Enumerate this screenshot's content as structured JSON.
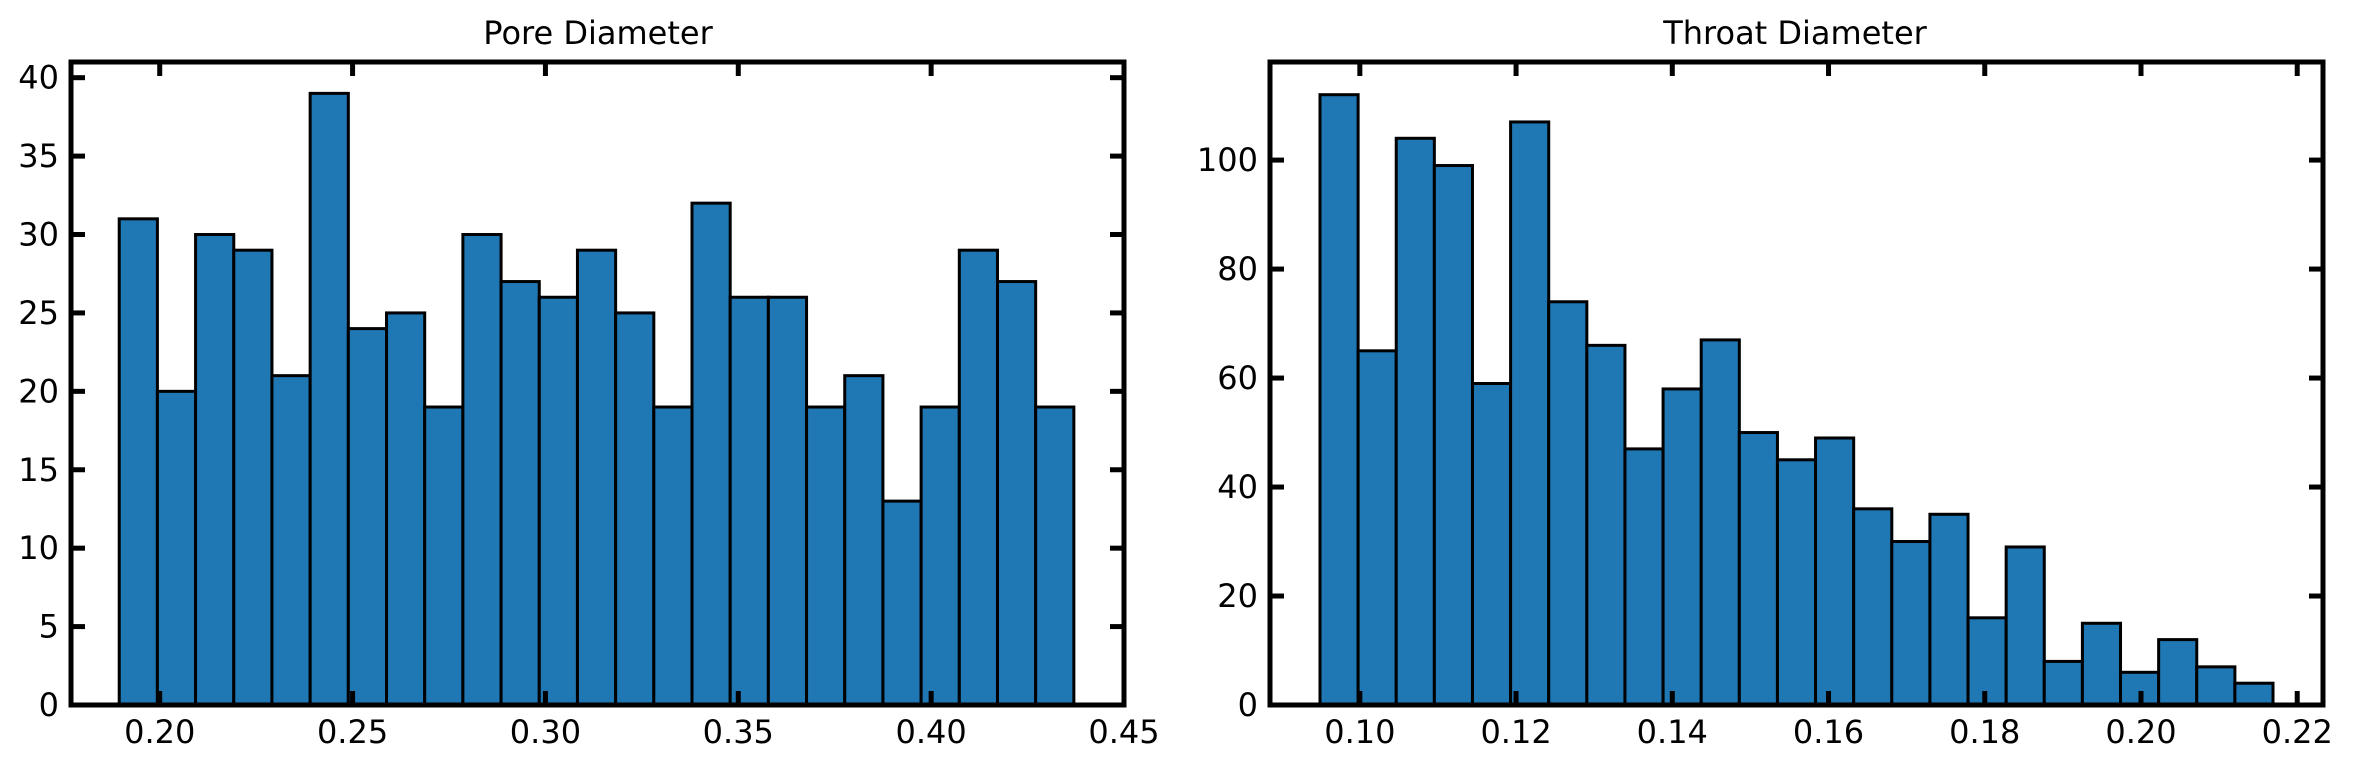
{
  "chart_data": [
    {
      "type": "bar",
      "title": "Pore Diameter",
      "xlabel": "",
      "ylabel": "",
      "bar_color": "#1f77b4",
      "edge_color": "#000000",
      "xlim": [
        0.177,
        0.45
      ],
      "ylim": [
        0,
        41
      ],
      "x_ticks": [
        0.2,
        0.25,
        0.3,
        0.35,
        0.4,
        0.45
      ],
      "x_tick_labels": [
        "0.20",
        "0.25",
        "0.30",
        "0.35",
        "0.40",
        "0.45"
      ],
      "y_ticks": [
        0,
        5,
        10,
        15,
        20,
        25,
        30,
        35,
        40
      ],
      "y_tick_labels": [
        "0",
        "5",
        "10",
        "15",
        "20",
        "25",
        "30",
        "35",
        "40"
      ],
      "bin_edges": [
        0.1895,
        0.1994,
        0.2093,
        0.2192,
        0.2291,
        0.239,
        0.2489,
        0.2588,
        0.2687,
        0.2786,
        0.2885,
        0.2984,
        0.3083,
        0.3182,
        0.3281,
        0.338,
        0.3479,
        0.3578,
        0.3677,
        0.3776,
        0.3875,
        0.3974,
        0.4073,
        0.4172,
        0.4271,
        0.437
      ],
      "values": [
        31,
        20,
        30,
        29,
        21,
        39,
        24,
        25,
        19,
        30,
        27,
        26,
        29,
        25,
        19,
        32,
        26,
        26,
        19,
        21,
        13,
        19,
        29,
        27,
        19
      ]
    },
    {
      "type": "bar",
      "title": "Throat Diameter",
      "xlabel": "",
      "ylabel": "",
      "bar_color": "#1f77b4",
      "edge_color": "#000000",
      "xlim": [
        0.0885,
        0.2233
      ],
      "ylim": [
        0,
        118
      ],
      "x_ticks": [
        0.1,
        0.12,
        0.14,
        0.16,
        0.18,
        0.2,
        0.22
      ],
      "x_tick_labels": [
        "0.10",
        "0.12",
        "0.14",
        "0.16",
        "0.18",
        "0.20",
        "0.22"
      ],
      "y_ticks": [
        0,
        20,
        40,
        60,
        80,
        100
      ],
      "y_tick_labels": [
        "0",
        "20",
        "40",
        "60",
        "80",
        "100"
      ],
      "bin_edges": [
        0.0949,
        0.09978,
        0.10466,
        0.10954,
        0.11442,
        0.1193,
        0.12418,
        0.12906,
        0.13394,
        0.13882,
        0.1437,
        0.14858,
        0.15346,
        0.15834,
        0.16322,
        0.1681,
        0.17298,
        0.17786,
        0.18274,
        0.18762,
        0.1925,
        0.19738,
        0.20226,
        0.20714,
        0.21202,
        0.2169
      ],
      "values": [
        112,
        65,
        104,
        99,
        59,
        107,
        74,
        66,
        47,
        58,
        67,
        50,
        45,
        49,
        36,
        30,
        35,
        16,
        29,
        8,
        15,
        6,
        12,
        7,
        4
      ]
    }
  ]
}
